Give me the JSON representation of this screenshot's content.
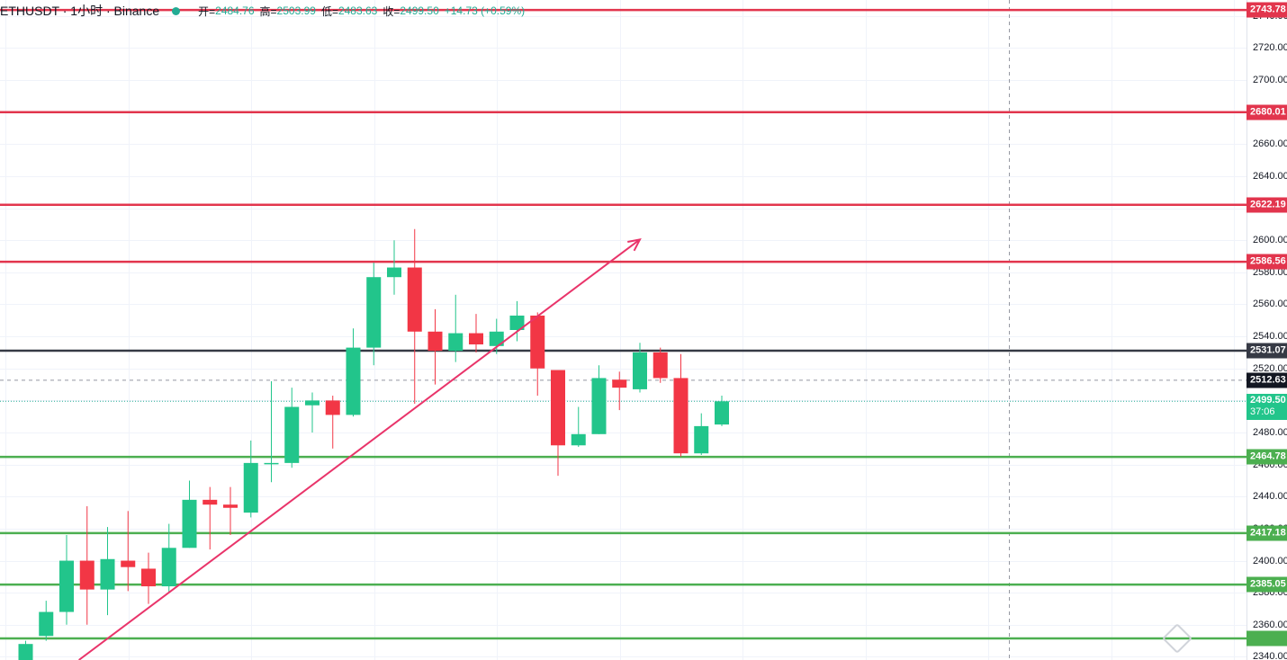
{
  "header": {
    "symbol": "ETHUSDT · 1小时 · Binance",
    "open_label": "开=",
    "open": "2484.76",
    "high_label": "高=",
    "high": "2503.99",
    "low_label": "低=",
    "low": "2483.63",
    "close_label": "收=",
    "close": "2499.50",
    "change": "+14.73 (+0.59%)"
  },
  "colors": {
    "up": "#22c58b",
    "down": "#f23645",
    "resistance": "#e2354d",
    "support": "#4caf50",
    "pivot": "#363a45",
    "trendline": "#e9346a"
  },
  "price_scale": {
    "range": [
      2338,
      2750
    ],
    "ticks": [
      "2740.00",
      "2720.00",
      "2700.00",
      "2680.00",
      "2660.00",
      "2640.00",
      "2620.00",
      "2600.00",
      "2580.00",
      "2560.00",
      "2540.00",
      "2520.00",
      "2500.00",
      "2480.00",
      "2460.00",
      "2440.00",
      "2420.00",
      "2400.00",
      "2380.00",
      "2360.00",
      "2340.00"
    ]
  },
  "horizontal_levels": [
    {
      "price": 2743.78,
      "label": "2743.78",
      "kind": "resistance"
    },
    {
      "price": 2680.01,
      "label": "2680.01",
      "kind": "resistance"
    },
    {
      "price": 2622.19,
      "label": "2622.19",
      "kind": "resistance"
    },
    {
      "price": 2586.56,
      "label": "2586.56",
      "kind": "resistance"
    },
    {
      "price": 2531.07,
      "label": "2531.07",
      "kind": "pivot"
    },
    {
      "price": 2464.78,
      "label": "2464.78",
      "kind": "support"
    },
    {
      "price": 2417.18,
      "label": "2417.18",
      "kind": "support"
    },
    {
      "price": 2385.05,
      "label": "2385.05",
      "kind": "support"
    },
    {
      "price": 2351.5,
      "label": "",
      "kind": "support"
    }
  ],
  "crosshair": {
    "price": 2512.63,
    "label": "2512.63"
  },
  "last_price": {
    "price": 2499.5,
    "label": "2499.50",
    "countdown": "37:06"
  },
  "trendline": {
    "from": {
      "bar": 2.6,
      "price": 2338
    },
    "to": {
      "bar": 30,
      "price": 2600.5
    }
  },
  "candles": [
    {
      "o": 2338,
      "h": 2350,
      "l": 2338,
      "c": 2348
    },
    {
      "o": 2353,
      "h": 2375,
      "l": 2350,
      "c": 2368
    },
    {
      "o": 2368,
      "h": 2416,
      "l": 2360,
      "c": 2400
    },
    {
      "o": 2400,
      "h": 2434,
      "l": 2360,
      "c": 2382
    },
    {
      "o": 2382,
      "h": 2421,
      "l": 2366,
      "c": 2401
    },
    {
      "o": 2400,
      "h": 2431,
      "l": 2381,
      "c": 2396
    },
    {
      "o": 2395,
      "h": 2405,
      "l": 2373,
      "c": 2384
    },
    {
      "o": 2384,
      "h": 2423,
      "l": 2380,
      "c": 2408
    },
    {
      "o": 2408,
      "h": 2450,
      "l": 2408,
      "c": 2438
    },
    {
      "o": 2438,
      "h": 2446,
      "l": 2407,
      "c": 2435
    },
    {
      "o": 2435,
      "h": 2446,
      "l": 2416,
      "c": 2433
    },
    {
      "o": 2430,
      "h": 2475,
      "l": 2427,
      "c": 2461
    },
    {
      "o": 2461,
      "h": 2512,
      "l": 2449,
      "c": 2461
    },
    {
      "o": 2461,
      "h": 2508,
      "l": 2458,
      "c": 2496
    },
    {
      "o": 2497,
      "h": 2505,
      "l": 2480,
      "c": 2500
    },
    {
      "o": 2500,
      "h": 2503,
      "l": 2470,
      "c": 2491
    },
    {
      "o": 2491,
      "h": 2545,
      "l": 2490,
      "c": 2533
    },
    {
      "o": 2533,
      "h": 2586,
      "l": 2522,
      "c": 2577
    },
    {
      "o": 2577,
      "h": 2600,
      "l": 2566,
      "c": 2583
    },
    {
      "o": 2583,
      "h": 2607,
      "l": 2498,
      "c": 2543
    },
    {
      "o": 2543,
      "h": 2557,
      "l": 2510,
      "c": 2531
    },
    {
      "o": 2531,
      "h": 2566,
      "l": 2524,
      "c": 2542
    },
    {
      "o": 2542,
      "h": 2554,
      "l": 2530,
      "c": 2535
    },
    {
      "o": 2534,
      "h": 2551,
      "l": 2529,
      "c": 2543
    },
    {
      "o": 2544,
      "h": 2562,
      "l": 2537,
      "c": 2553
    },
    {
      "o": 2553,
      "h": 2555,
      "l": 2503,
      "c": 2520
    },
    {
      "o": 2519,
      "h": 2518,
      "l": 2453,
      "c": 2472
    },
    {
      "o": 2472,
      "h": 2496,
      "l": 2471,
      "c": 2479
    },
    {
      "o": 2479,
      "h": 2522,
      "l": 2479,
      "c": 2514
    },
    {
      "o": 2513,
      "h": 2518,
      "l": 2494,
      "c": 2508
    },
    {
      "o": 2507,
      "h": 2536,
      "l": 2505,
      "c": 2530
    },
    {
      "o": 2530,
      "h": 2533,
      "l": 2511,
      "c": 2514
    },
    {
      "o": 2514,
      "h": 2529,
      "l": 2465,
      "c": 2467
    },
    {
      "o": 2467,
      "h": 2492,
      "l": 2466,
      "c": 2484
    },
    {
      "o": 2485,
      "h": 2503,
      "l": 2484,
      "c": 2499.5
    }
  ]
}
